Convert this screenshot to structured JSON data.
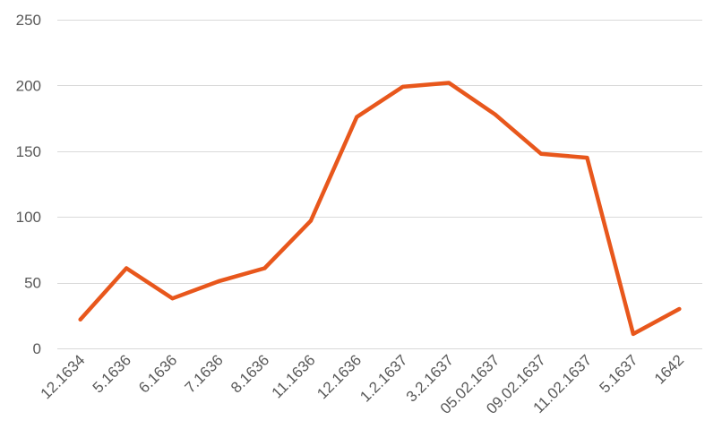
{
  "chart_data": {
    "type": "line",
    "title": "",
    "xlabel": "",
    "ylabel": "",
    "categories": [
      "12.1634",
      "5.1636",
      "6.1636",
      "7.1636",
      "8.1636",
      "11.1636",
      "12.1636",
      "1.2.1637",
      "3.2.1637",
      "05.02.1637",
      "09.02.1637",
      "11.02.1637",
      "5.1637",
      "1642"
    ],
    "series": [
      {
        "values": [
          22,
          61,
          38,
          51,
          61,
          97,
          176,
          199,
          202,
          178,
          148,
          145,
          11,
          30
        ],
        "color": "#e8571c"
      }
    ],
    "ylim": [
      0,
      250
    ],
    "yticks": [
      0,
      50,
      100,
      150,
      200,
      250
    ],
    "grid": true,
    "legend": "none"
  }
}
